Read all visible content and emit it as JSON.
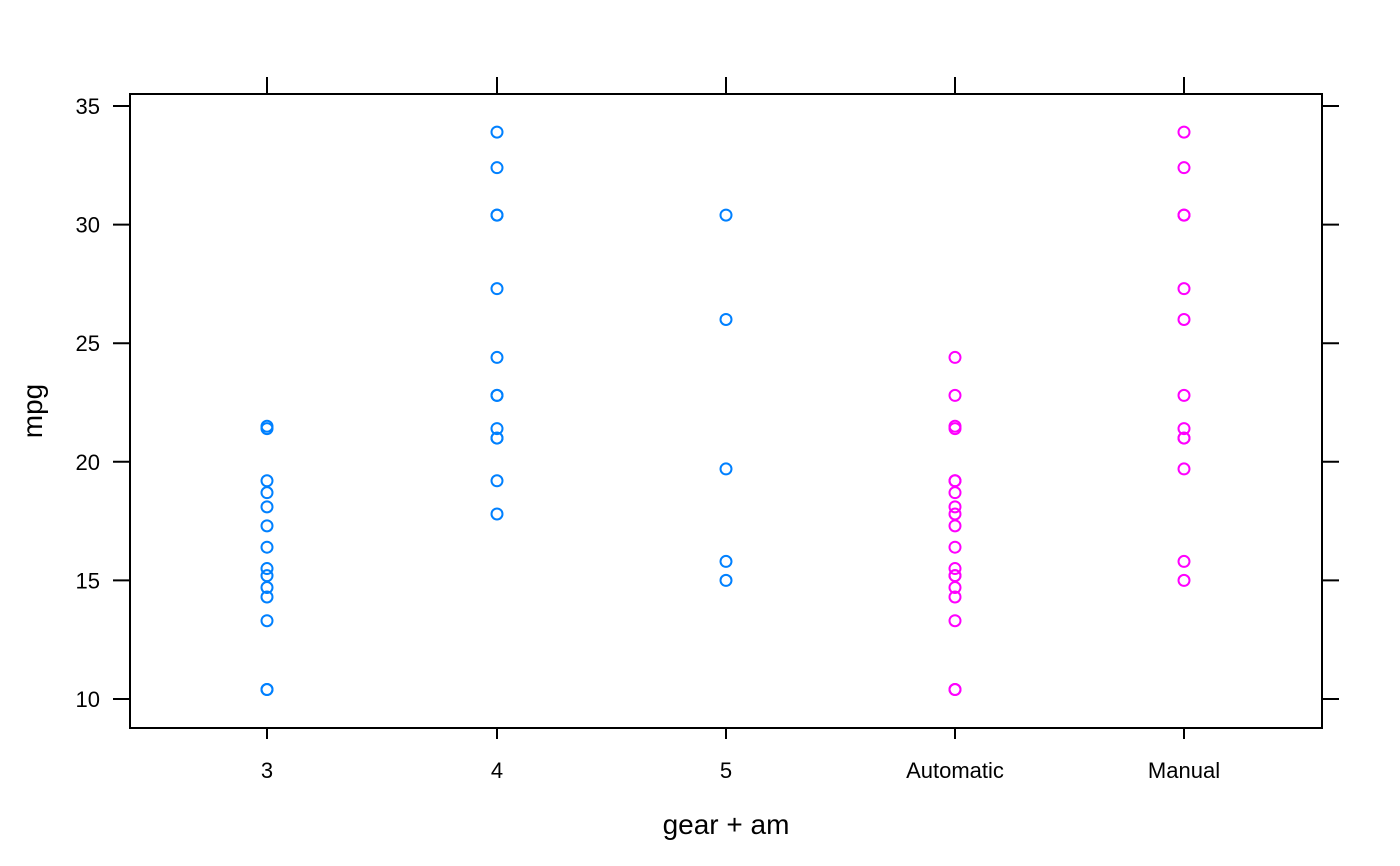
{
  "chart_data": {
    "type": "scatter",
    "title": "",
    "xlabel": "gear + am",
    "ylabel": "mpg",
    "categories": [
      "3",
      "4",
      "5",
      "Automatic",
      "Manual"
    ],
    "yticks": [
      10,
      15,
      20,
      25,
      30,
      35
    ],
    "ylim": [
      8.7,
      35.5
    ],
    "grid": false,
    "series": [
      {
        "color": "#0080ff",
        "points": [
          {
            "category": "3",
            "values": [
              21.4,
              21.5,
              19.2,
              18.7,
              18.1,
              17.3,
              16.4,
              15.5,
              15.2,
              14.7,
              14.3,
              13.3,
              10.4,
              10.4
            ]
          },
          {
            "category": "4",
            "values": [
              33.9,
              32.4,
              30.4,
              30.4,
              27.3,
              24.4,
              22.8,
              22.8,
              21.4,
              21.0,
              21.0,
              19.2,
              17.8
            ]
          },
          {
            "category": "5",
            "values": [
              30.4,
              26.0,
              19.7,
              15.8,
              15.0
            ]
          }
        ]
      },
      {
        "color": "#ff00ff",
        "points": [
          {
            "category": "Automatic",
            "values": [
              24.4,
              22.8,
              21.5,
              21.4,
              19.2,
              18.7,
              18.1,
              17.8,
              17.3,
              16.4,
              15.5,
              15.2,
              14.7,
              14.3,
              13.3,
              10.4,
              10.4,
              19.2,
              15.2
            ]
          },
          {
            "category": "Manual",
            "values": [
              33.9,
              32.4,
              30.4,
              30.4,
              27.3,
              26.0,
              22.8,
              21.4,
              21.0,
              21.0,
              19.7,
              15.8,
              15.0
            ]
          }
        ]
      }
    ]
  }
}
